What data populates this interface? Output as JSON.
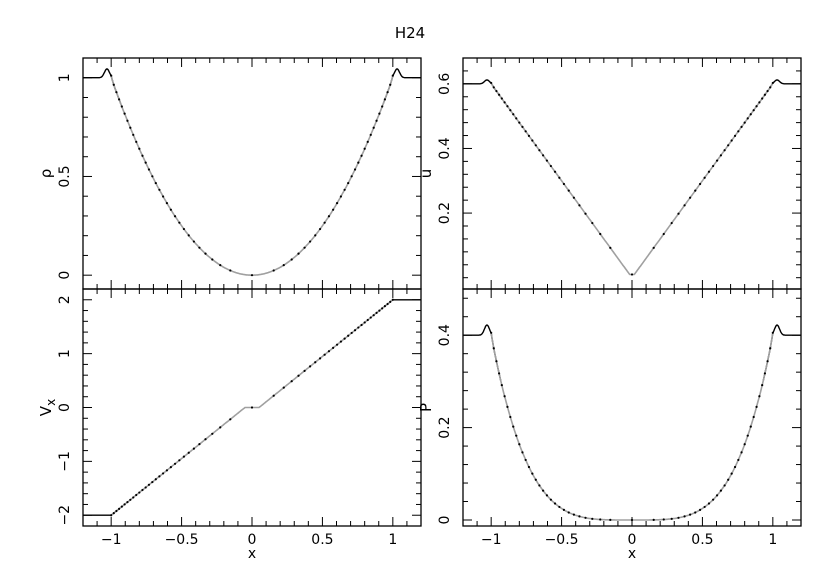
{
  "figure": {
    "title": "H24"
  },
  "chart_data": [
    {
      "id": "rho",
      "type": "line",
      "ylabel": "ρ",
      "xlabel": "",
      "xlim": [
        -1.2,
        1.2
      ],
      "ylim": [
        -0.07,
        1.1
      ],
      "yticks": [
        0,
        0.5,
        1
      ],
      "yticklabels": [
        "0",
        "0.5",
        "1"
      ],
      "xticks": [
        -1,
        -0.5,
        0,
        0.5,
        1
      ],
      "xticklabels": [],
      "curve": {
        "f": "x^2",
        "plateau": 1.0,
        "bump": 0.045,
        "edge": 1.0
      },
      "series": [
        {
          "style": "black-dots"
        },
        {
          "style": "gray-line"
        }
      ]
    },
    {
      "id": "u",
      "type": "line",
      "ylabel": "u",
      "xlabel": "",
      "xlim": [
        -1.2,
        1.2
      ],
      "ylim": [
        -0.035,
        0.68
      ],
      "yticks": [
        0.2,
        0.4,
        0.6
      ],
      "yticklabels": [
        "0.2",
        "0.4",
        "0.6"
      ],
      "xticks": [
        -1,
        -0.5,
        0,
        0.5,
        1
      ],
      "xticklabels": [],
      "curve": {
        "f": "0.6|x|",
        "plateau": 0.6,
        "bump": 0.012,
        "edge": 1.0,
        "floor": 0.01
      },
      "series": [
        {
          "style": "black-dots"
        },
        {
          "style": "gray-line"
        }
      ]
    },
    {
      "id": "vx",
      "type": "line",
      "ylabel": "V",
      "ylabel_sub": "x",
      "xlabel": "x",
      "xlim": [
        -1.2,
        1.2
      ],
      "ylim": [
        -2.2,
        2.2
      ],
      "yticks": [
        -2,
        -1,
        0,
        1,
        2
      ],
      "yticklabels": [
        "−2",
        "−1",
        "0",
        "1",
        "2"
      ],
      "xticks": [
        -1,
        -0.5,
        0,
        0.5,
        1
      ],
      "xticklabels": [
        "−1",
        "−0.5",
        "0",
        "0.5",
        "1"
      ],
      "curve": {
        "f": "2x",
        "plateau": 2.0,
        "flat_center": 0.05,
        "edge": 1.0
      },
      "series": [
        {
          "style": "black-dots"
        },
        {
          "style": "gray-line"
        }
      ]
    },
    {
      "id": "p",
      "type": "line",
      "ylabel": "P",
      "xlabel": "x",
      "xlim": [
        -1.2,
        1.2
      ],
      "ylim": [
        -0.013,
        0.5
      ],
      "yticks": [
        0,
        0.2,
        0.4
      ],
      "yticklabels": [
        "0",
        "0.2",
        "0.4"
      ],
      "xticks": [
        -1,
        -0.5,
        0,
        0.5,
        1
      ],
      "xticklabels": [
        "−1",
        "−0.5",
        "0",
        "0.5",
        "1"
      ],
      "curve": {
        "f": "0.4x^4",
        "plateau": 0.4,
        "bump": 0.022,
        "edge": 1.0
      },
      "series": [
        {
          "style": "black-dots"
        },
        {
          "style": "gray-line"
        }
      ]
    }
  ]
}
